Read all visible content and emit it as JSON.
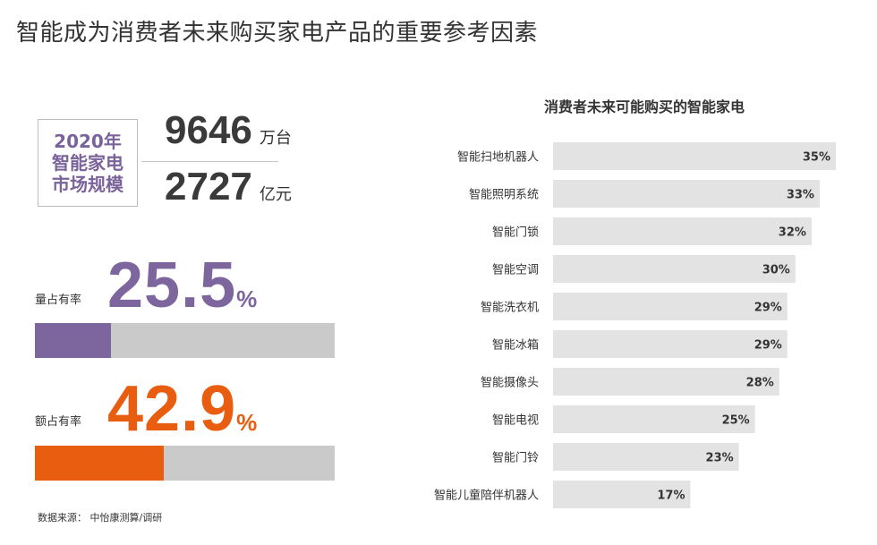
{
  "page_title": "智能成为消费者未来购买家电产品的重要参考因素",
  "market": {
    "box_lines": [
      "2020年",
      "智能家电",
      "市场规模"
    ],
    "units_value": "9646",
    "units_unit": "万台",
    "revenue_value": "2727",
    "revenue_unit": "亿元"
  },
  "volume_share": {
    "label": "量占有率",
    "value": "25.5",
    "pct": "%",
    "fraction": 0.255,
    "color": "#7d659e"
  },
  "revenue_share": {
    "label": "额占有率",
    "value": "42.9",
    "pct": "%",
    "fraction": 0.429,
    "color": "#e95d10"
  },
  "source": "数据来源： 中怡康测算/调研",
  "colors": {
    "bar": "#e3e3e3",
    "track": "#cacaca",
    "text": "#333333"
  },
  "chart_data": {
    "type": "bar",
    "orientation": "horizontal",
    "title": "消费者未来可能购买的智能家电",
    "categories": [
      "智能扫地机器人",
      "智能照明系统",
      "智能门锁",
      "智能空调",
      "智能洗衣机",
      "智能冰箱",
      "智能摄像头",
      "智能电视",
      "智能门铃",
      "智能儿童陪伴机器人"
    ],
    "values": [
      35,
      33,
      32,
      30,
      29,
      29,
      28,
      25,
      23,
      17
    ],
    "labels": [
      "35%",
      "33%",
      "32%",
      "30%",
      "29%",
      "29%",
      "28%",
      "25%",
      "23%",
      "17%"
    ],
    "xlim": [
      0,
      35
    ],
    "grid": false
  }
}
